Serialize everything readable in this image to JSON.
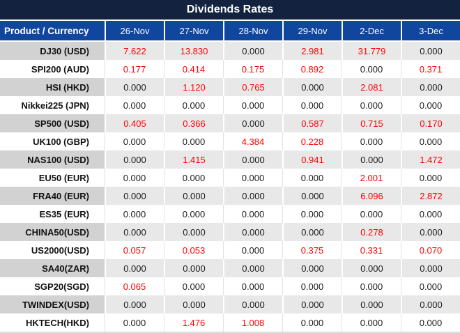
{
  "title": "Dividends Rates",
  "chart_data": {
    "type": "table",
    "title": "Dividends Rates",
    "columns": [
      "Product / Currency",
      "26-Nov",
      "27-Nov",
      "28-Nov",
      "29-Nov",
      "2-Dec",
      "3-Dec"
    ],
    "rows": [
      {
        "product": "DJ30 (USD)",
        "values": [
          "7.622",
          "13.830",
          "0.000",
          "2.981",
          "31.779",
          "0.000"
        ]
      },
      {
        "product": "SPI200 (AUD)",
        "values": [
          "0.177",
          "0.414",
          "0.175",
          "0.892",
          "0.000",
          "0.371"
        ]
      },
      {
        "product": "HSI (HKD)",
        "values": [
          "0.000",
          "1.120",
          "0.765",
          "0.000",
          "2.081",
          "0.000"
        ]
      },
      {
        "product": "Nikkei225 (JPN)",
        "values": [
          "0.000",
          "0.000",
          "0.000",
          "0.000",
          "0.000",
          "0.000"
        ]
      },
      {
        "product": "SP500 (USD)",
        "values": [
          "0.405",
          "0.366",
          "0.000",
          "0.587",
          "0.715",
          "0.170"
        ]
      },
      {
        "product": "UK100 (GBP)",
        "values": [
          "0.000",
          "0.000",
          "4.384",
          "0.228",
          "0.000",
          "0.000"
        ]
      },
      {
        "product": "NAS100 (USD)",
        "values": [
          "0.000",
          "1.415",
          "0.000",
          "0.941",
          "0.000",
          "1.472"
        ]
      },
      {
        "product": "EU50 (EUR)",
        "values": [
          "0.000",
          "0.000",
          "0.000",
          "0.000",
          "2.001",
          "0.000"
        ]
      },
      {
        "product": "FRA40 (EUR)",
        "values": [
          "0.000",
          "0.000",
          "0.000",
          "0.000",
          "6.096",
          "2.872"
        ]
      },
      {
        "product": "ES35 (EUR)",
        "values": [
          "0.000",
          "0.000",
          "0.000",
          "0.000",
          "0.000",
          "0.000"
        ]
      },
      {
        "product": "CHINA50(USD)",
        "values": [
          "0.000",
          "0.000",
          "0.000",
          "0.000",
          "0.278",
          "0.000"
        ]
      },
      {
        "product": "US2000(USD)",
        "values": [
          "0.057",
          "0.053",
          "0.000",
          "0.375",
          "0.331",
          "0.070"
        ]
      },
      {
        "product": "SA40(ZAR)",
        "values": [
          "0.000",
          "0.000",
          "0.000",
          "0.000",
          "0.000",
          "0.000"
        ]
      },
      {
        "product": "SGP20(SGD)",
        "values": [
          "0.065",
          "0.000",
          "0.000",
          "0.000",
          "0.000",
          "0.000"
        ]
      },
      {
        "product": "TWINDEX(USD)",
        "values": [
          "0.000",
          "0.000",
          "0.000",
          "0.000",
          "0.000",
          "0.000"
        ]
      },
      {
        "product": "HKTECH(HKD)",
        "values": [
          "0.000",
          "1.476",
          "1.008",
          "0.000",
          "0.000",
          "0.000"
        ]
      }
    ]
  },
  "colors": {
    "title_bar_bg": "#13233f",
    "header_bg": "#10469e",
    "header_text": "#ffffff",
    "striped_product_bg": "#d2d2d2",
    "striped_cell_bg": "#e8e8e8",
    "plain_row_bg": "#ffffff",
    "nonzero_value_text": "#ff0000",
    "zero_value_text": "#1a1a1a"
  }
}
